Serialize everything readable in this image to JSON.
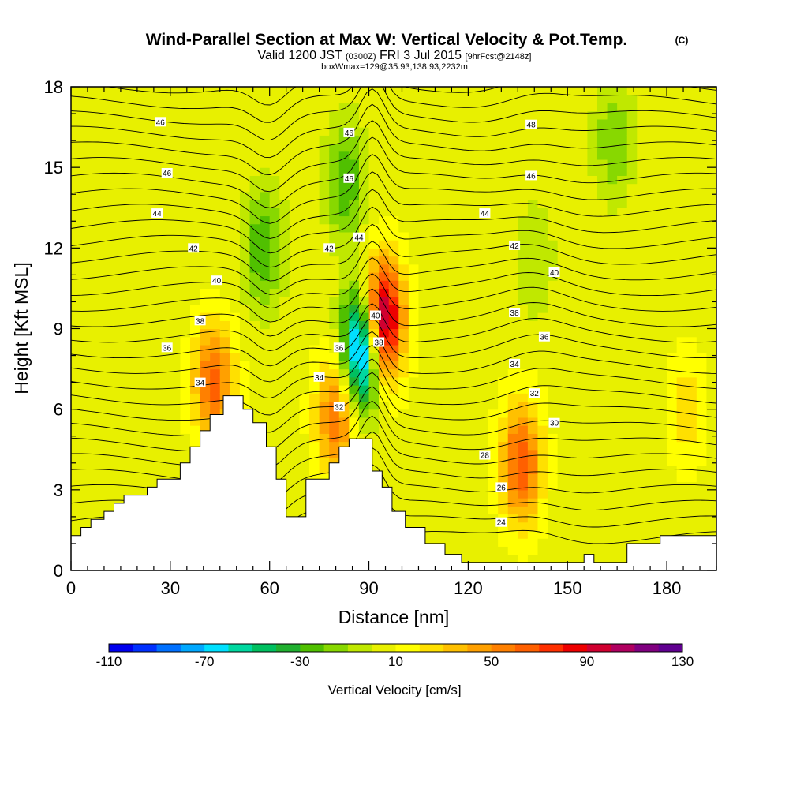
{
  "title": "Wind-Parallel Section at Max W: Vertical Velocity & Pot.Temp.",
  "copyright": "(C)",
  "subtitle_prefix": "Valid 1200 JST",
  "subtitle_utc": "(0300Z)",
  "subtitle_date": "FRI 3 Jul 2015",
  "subtitle_fcst": "[9hrFcst@2148z]",
  "subtitle2": "boxWmax=129@35.93,138.93,2232m",
  "chart_data": {
    "type": "heatmap",
    "xlabel": "Distance [nm]",
    "ylabel": "Height [Kft MSL]",
    "xlim": [
      0,
      195
    ],
    "ylim": [
      0,
      18
    ],
    "x_ticks": [
      "0",
      "30",
      "60",
      "90",
      "120",
      "150",
      "180"
    ],
    "y_ticks": [
      "0",
      "3",
      "6",
      "9",
      "12",
      "15",
      "18"
    ],
    "colorbar": {
      "label": "Vertical Velocity [cm/s]",
      "min": -110,
      "max": 130,
      "step": 10,
      "tick_labels": [
        "-110",
        "-70",
        "-30",
        "10",
        "50",
        "90",
        "130"
      ],
      "colors": [
        "#0000ee",
        "#0030ff",
        "#0070ff",
        "#00a8ff",
        "#00e0ff",
        "#00d8a0",
        "#00c060",
        "#20b030",
        "#50c000",
        "#88d800",
        "#c0e800",
        "#e8f000",
        "#ffff00",
        "#ffe000",
        "#ffc000",
        "#ffa000",
        "#ff8000",
        "#ff6000",
        "#ff3000",
        "#ee0000",
        "#d00030",
        "#b00060",
        "#800080",
        "#600090"
      ]
    },
    "features": [
      {
        "x": 88,
        "y": 8.3,
        "w": -105
      },
      {
        "x": 94,
        "y": 9.3,
        "w": 125
      },
      {
        "x": 43,
        "y": 7.0,
        "w": 65
      },
      {
        "x": 80,
        "y": 5.8,
        "w": 60
      },
      {
        "x": 136,
        "y": 4.0,
        "w": 70
      },
      {
        "x": 58,
        "y": 12.0,
        "w": -30
      },
      {
        "x": 83,
        "y": 14.5,
        "w": -30
      },
      {
        "x": 164,
        "y": 16.0,
        "w": -20
      },
      {
        "x": 140,
        "y": 11.5,
        "w": -10
      },
      {
        "x": 186,
        "y": 6.0,
        "w": 25
      }
    ],
    "terrain": [
      [
        0,
        1.3
      ],
      [
        3,
        1.3
      ],
      [
        3,
        1.6
      ],
      [
        6,
        1.6
      ],
      [
        6,
        1.9
      ],
      [
        10,
        1.9
      ],
      [
        10,
        2.2
      ],
      [
        13,
        2.2
      ],
      [
        13,
        2.5
      ],
      [
        16,
        2.5
      ],
      [
        16,
        2.8
      ],
      [
        23,
        2.8
      ],
      [
        23,
        3.1
      ],
      [
        26,
        3.1
      ],
      [
        26,
        3.4
      ],
      [
        33,
        3.4
      ],
      [
        33,
        4.0
      ],
      [
        36,
        4.0
      ],
      [
        36,
        4.6
      ],
      [
        39,
        4.6
      ],
      [
        39,
        5.2
      ],
      [
        42,
        5.2
      ],
      [
        42,
        5.8
      ],
      [
        46,
        5.8
      ],
      [
        46,
        6.5
      ],
      [
        52,
        6.5
      ],
      [
        52,
        6.0
      ],
      [
        55,
        6.0
      ],
      [
        55,
        5.5
      ],
      [
        59,
        5.5
      ],
      [
        59,
        4.6
      ],
      [
        62,
        4.6
      ],
      [
        62,
        3.4
      ],
      [
        65,
        3.4
      ],
      [
        65,
        2.0
      ],
      [
        71,
        2.0
      ],
      [
        71,
        3.4
      ],
      [
        78,
        3.4
      ],
      [
        78,
        4.0
      ],
      [
        81,
        4.0
      ],
      [
        81,
        4.6
      ],
      [
        84,
        4.6
      ],
      [
        84,
        4.9
      ],
      [
        91,
        4.9
      ],
      [
        91,
        3.7
      ],
      [
        94,
        3.7
      ],
      [
        94,
        3.1
      ],
      [
        97,
        3.1
      ],
      [
        97,
        2.2
      ],
      [
        101,
        2.2
      ],
      [
        101,
        1.6
      ],
      [
        107,
        1.6
      ],
      [
        107,
        1.0
      ],
      [
        113,
        1.0
      ],
      [
        113,
        0.6
      ],
      [
        118,
        0.6
      ],
      [
        118,
        0.3
      ],
      [
        155,
        0.3
      ],
      [
        155,
        0.6
      ],
      [
        158,
        0.6
      ],
      [
        158,
        0.3
      ],
      [
        168,
        0.3
      ],
      [
        168,
        1.0
      ],
      [
        178,
        1.0
      ],
      [
        178,
        1.3
      ],
      [
        195,
        1.3
      ]
    ],
    "theta_labels": [
      {
        "x": 27,
        "y": 16.7,
        "t": "46"
      },
      {
        "x": 29,
        "y": 14.8,
        "t": "46"
      },
      {
        "x": 26,
        "y": 13.3,
        "t": "44"
      },
      {
        "x": 37,
        "y": 12.0,
        "t": "42"
      },
      {
        "x": 44,
        "y": 10.8,
        "t": "40"
      },
      {
        "x": 39,
        "y": 9.3,
        "t": "38"
      },
      {
        "x": 29,
        "y": 8.3,
        "t": "36"
      },
      {
        "x": 39,
        "y": 7.0,
        "t": "34"
      },
      {
        "x": 84,
        "y": 16.3,
        "t": "46"
      },
      {
        "x": 84,
        "y": 14.6,
        "t": "46"
      },
      {
        "x": 87,
        "y": 12.4,
        "t": "44"
      },
      {
        "x": 78,
        "y": 12.0,
        "t": "42"
      },
      {
        "x": 92,
        "y": 9.5,
        "t": "40"
      },
      {
        "x": 93,
        "y": 8.5,
        "t": "38"
      },
      {
        "x": 81,
        "y": 8.3,
        "t": "36"
      },
      {
        "x": 75,
        "y": 7.2,
        "t": "34"
      },
      {
        "x": 81,
        "y": 6.1,
        "t": "32"
      },
      {
        "x": 139,
        "y": 16.6,
        "t": "48"
      },
      {
        "x": 139,
        "y": 14.7,
        "t": "46"
      },
      {
        "x": 125,
        "y": 13.3,
        "t": "44"
      },
      {
        "x": 134,
        "y": 12.1,
        "t": "42"
      },
      {
        "x": 146,
        "y": 11.1,
        "t": "40"
      },
      {
        "x": 134,
        "y": 9.6,
        "t": "38"
      },
      {
        "x": 143,
        "y": 8.7,
        "t": "36"
      },
      {
        "x": 134,
        "y": 7.7,
        "t": "34"
      },
      {
        "x": 140,
        "y": 6.6,
        "t": "32"
      },
      {
        "x": 146,
        "y": 5.5,
        "t": "30"
      },
      {
        "x": 125,
        "y": 4.3,
        "t": "28"
      },
      {
        "x": 130,
        "y": 3.1,
        "t": "26"
      },
      {
        "x": 130,
        "y": 1.8,
        "t": "24"
      }
    ]
  }
}
